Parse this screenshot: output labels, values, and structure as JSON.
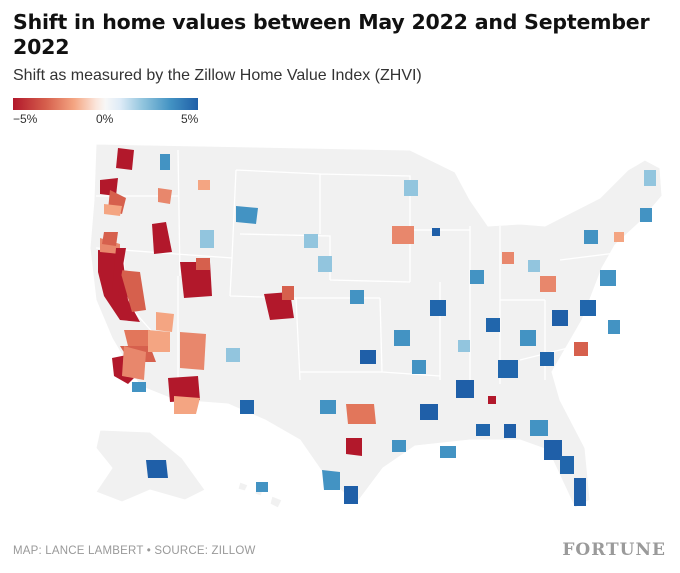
{
  "title": "Shift in home values between May 2022 and September 2022",
  "subtitle": "Shift as measured by the Zillow Home Value Index (ZHVI)",
  "legend": {
    "min_label": "−5%",
    "mid_label": "0%",
    "max_label": "5%",
    "colors": [
      "#b2182b",
      "#d6604d",
      "#f4a582",
      "#f7f7f7",
      "#92c5de",
      "#4393c3",
      "#1f5fa8"
    ]
  },
  "credit": "MAP: LANCE LAMBERT • SOURCE: ZILLOW",
  "brand": "FORTUNE",
  "map": {
    "base_fill": "#f1f1f1",
    "border_color": "#ffffff",
    "decline_regions": [
      "California",
      "Oregon",
      "Washington",
      "Nevada",
      "Idaho",
      "Utah",
      "Arizona",
      "Colorado",
      "Texas"
    ],
    "gain_regions": [
      "Southeast",
      "Midwest",
      "Northeast",
      "Florida"
    ]
  }
}
